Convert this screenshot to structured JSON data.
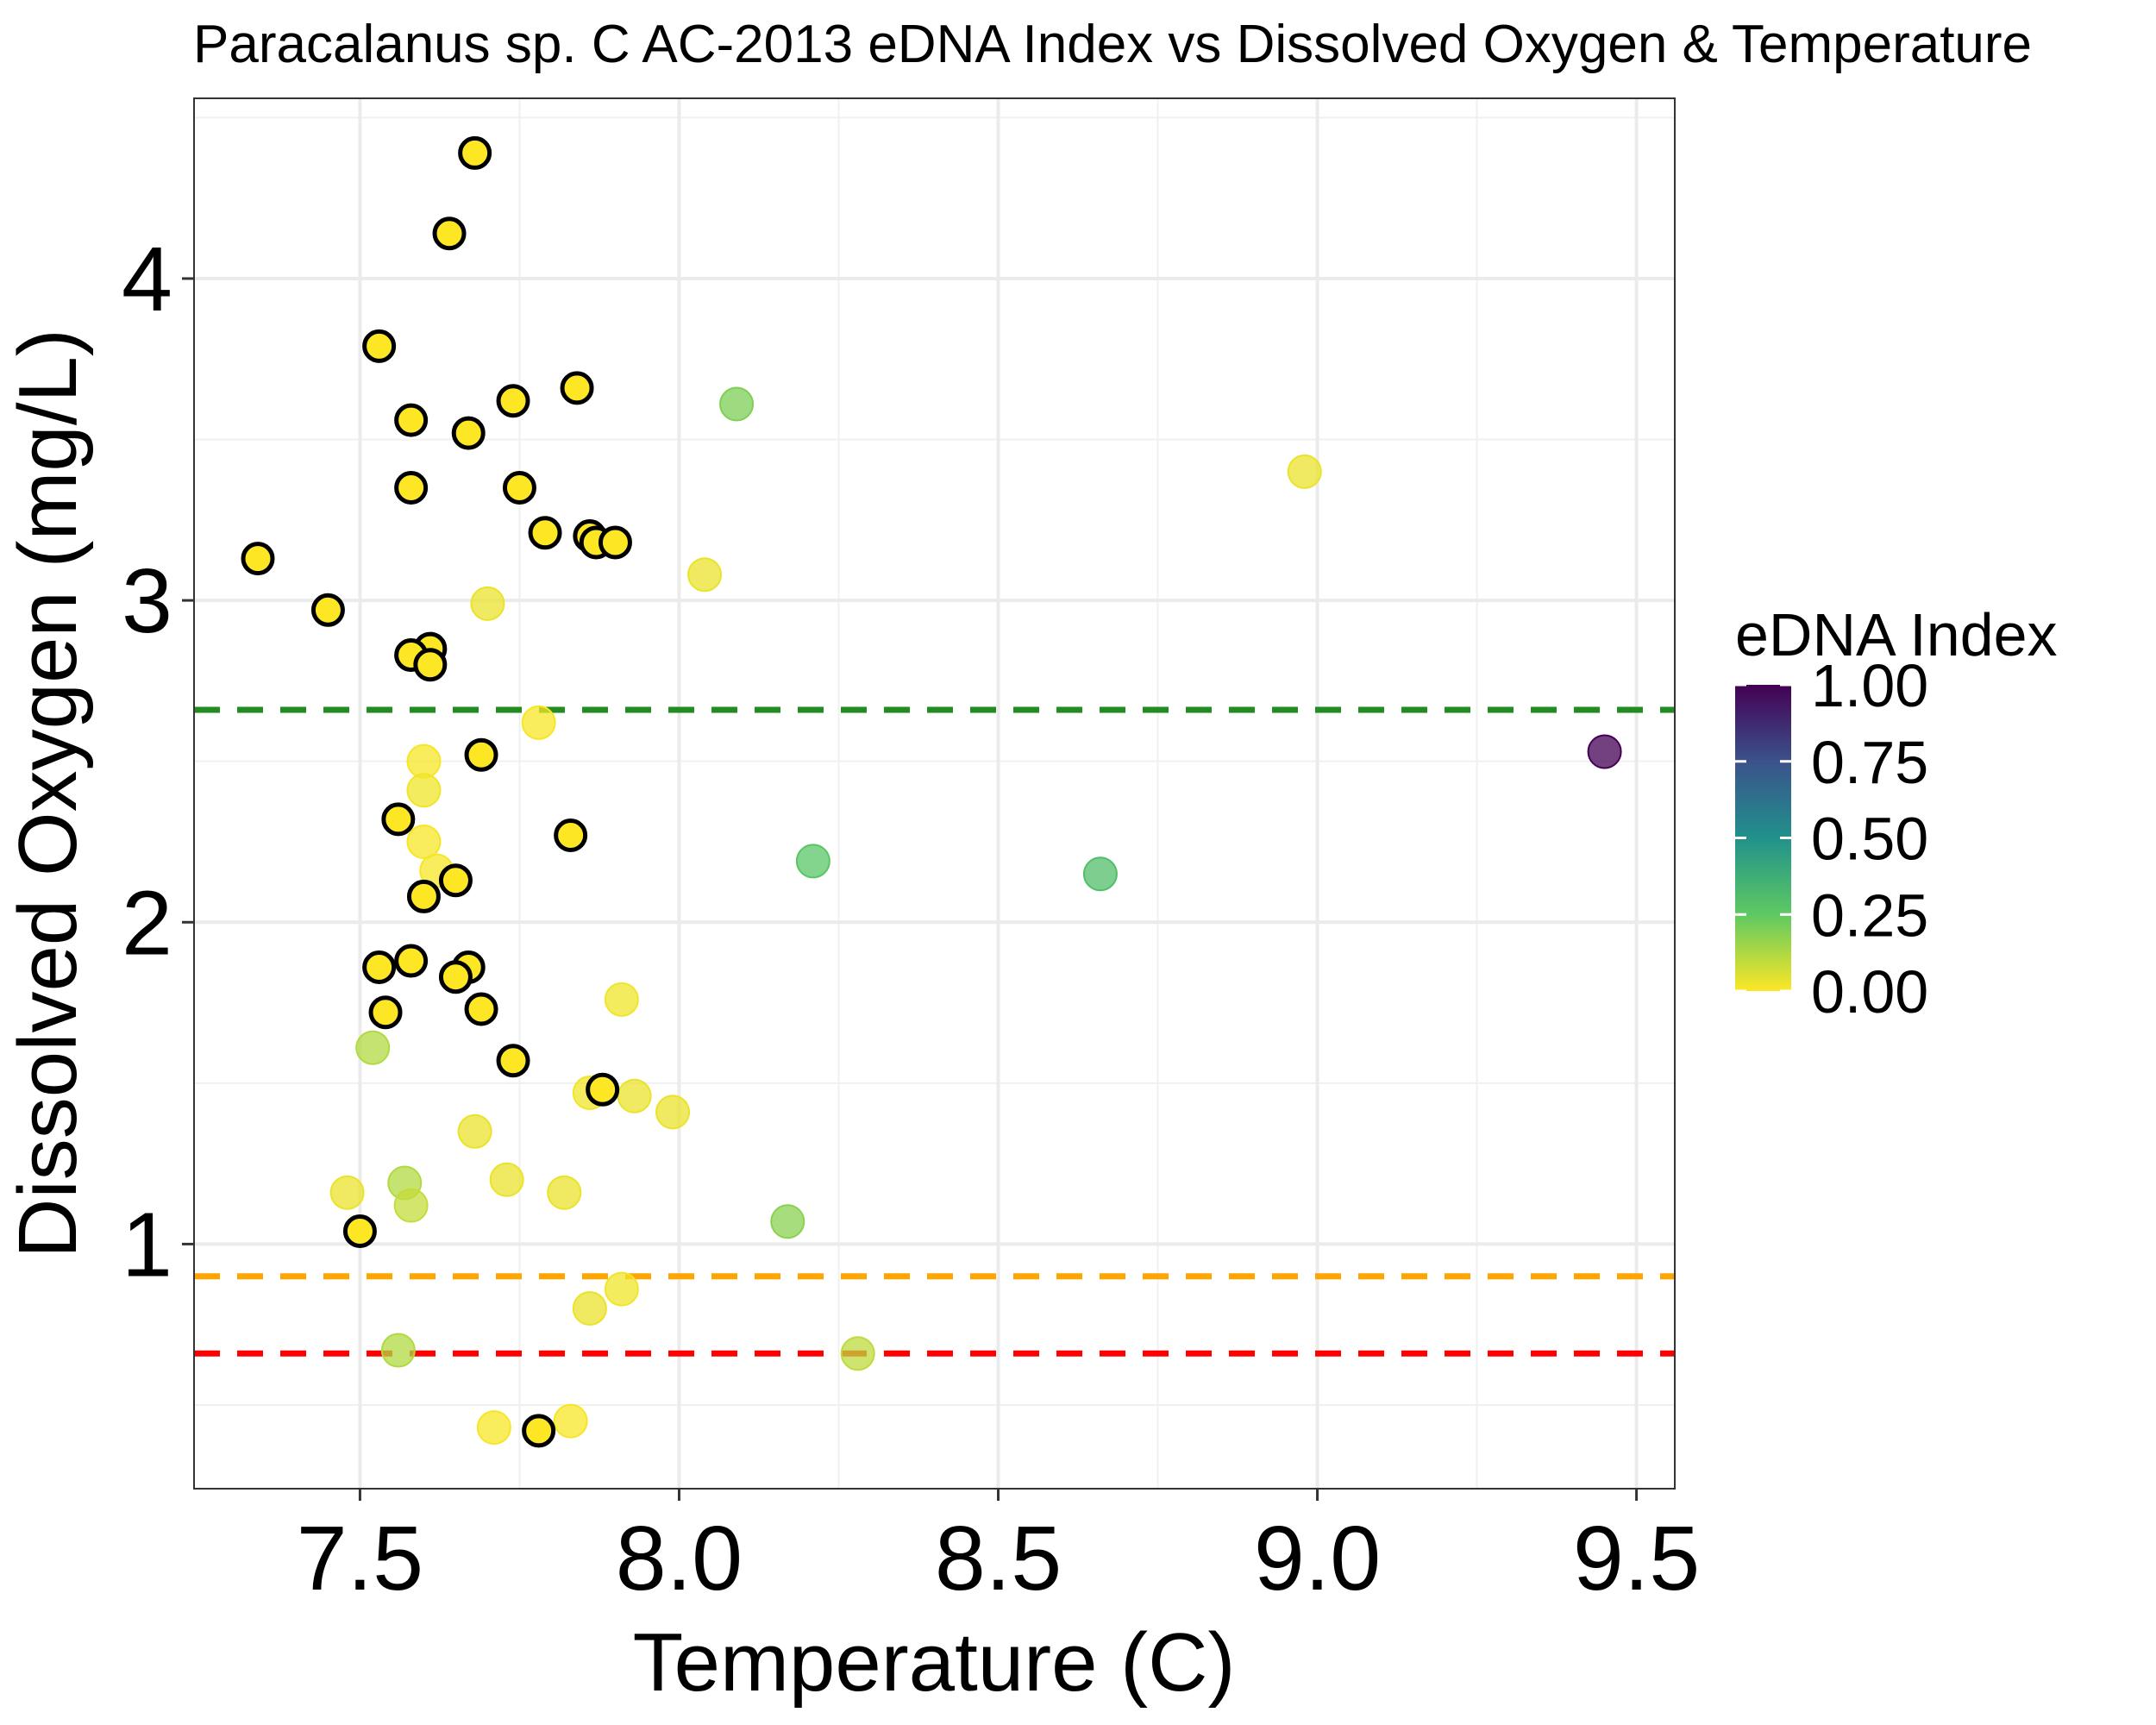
{
  "chart_data": {
    "type": "scatter",
    "title": "Paracalanus sp. C AC-2013 eDNA Index vs Dissolved Oxygen & Temperature",
    "xlabel": "Temperature (C)",
    "ylabel": "Dissolved Oxygen (mg/L)",
    "xlim": [
      7.24,
      9.56
    ],
    "ylim": [
      0.24,
      4.56
    ],
    "x_ticks": [
      7.5,
      8.0,
      8.5,
      9.0,
      9.5
    ],
    "x_tick_labels": [
      "7.5",
      "8.0",
      "8.5",
      "9.0",
      "9.5"
    ],
    "y_ticks": [
      1,
      2,
      3,
      4
    ],
    "y_tick_labels": [
      "1",
      "2",
      "3",
      "4"
    ],
    "grid": true,
    "reference_lines": [
      {
        "y": 2.66,
        "color": "#228B22",
        "style": "dashed"
      },
      {
        "y": 0.9,
        "color": "#FFA500",
        "style": "dashed"
      },
      {
        "y": 0.66,
        "color": "#FF0000",
        "style": "dashed"
      }
    ],
    "color_scale": {
      "title": "eDNA Index",
      "ticks": [
        1.0,
        0.75,
        0.5,
        0.25,
        0.0
      ],
      "tick_labels": [
        "1.00",
        "0.75",
        "0.50",
        "0.25",
        "0.00"
      ],
      "palette": "viridis",
      "legend_position": "right"
    },
    "points": [
      {
        "x": 7.68,
        "y": 4.39,
        "edna": 0.0,
        "outlined": true
      },
      {
        "x": 7.64,
        "y": 4.14,
        "edna": 0.0,
        "outlined": true
      },
      {
        "x": 7.53,
        "y": 3.79,
        "edna": 0.0,
        "outlined": true
      },
      {
        "x": 7.74,
        "y": 3.62,
        "edna": 0.0,
        "outlined": true
      },
      {
        "x": 7.84,
        "y": 3.66,
        "edna": 0.0,
        "outlined": true
      },
      {
        "x": 7.58,
        "y": 3.56,
        "edna": 0.0,
        "outlined": true
      },
      {
        "x": 7.67,
        "y": 3.52,
        "edna": 0.0,
        "outlined": true
      },
      {
        "x": 7.58,
        "y": 3.35,
        "edna": 0.0,
        "outlined": true
      },
      {
        "x": 7.75,
        "y": 3.35,
        "edna": 0.0,
        "outlined": true
      },
      {
        "x": 7.79,
        "y": 3.21,
        "edna": 0.0,
        "outlined": true
      },
      {
        "x": 7.86,
        "y": 3.2,
        "edna": 0.0,
        "outlined": true
      },
      {
        "x": 7.87,
        "y": 3.18,
        "edna": 0.0,
        "outlined": true
      },
      {
        "x": 7.9,
        "y": 3.18,
        "edna": 0.0,
        "outlined": true
      },
      {
        "x": 7.34,
        "y": 3.13,
        "edna": 0.0,
        "outlined": true
      },
      {
        "x": 7.45,
        "y": 2.97,
        "edna": 0.0,
        "outlined": true
      },
      {
        "x": 7.61,
        "y": 2.85,
        "edna": 0.0,
        "outlined": true
      },
      {
        "x": 7.58,
        "y": 2.83,
        "edna": 0.0,
        "outlined": true
      },
      {
        "x": 7.61,
        "y": 2.8,
        "edna": 0.0,
        "outlined": true
      },
      {
        "x": 7.69,
        "y": 2.52,
        "edna": 0.0,
        "outlined": true
      },
      {
        "x": 7.56,
        "y": 2.32,
        "edna": 0.0,
        "outlined": true
      },
      {
        "x": 7.83,
        "y": 2.27,
        "edna": 0.0,
        "outlined": true
      },
      {
        "x": 7.65,
        "y": 2.13,
        "edna": 0.0,
        "outlined": true
      },
      {
        "x": 7.6,
        "y": 2.08,
        "edna": 0.0,
        "outlined": true
      },
      {
        "x": 7.58,
        "y": 1.88,
        "edna": 0.0,
        "outlined": true
      },
      {
        "x": 7.53,
        "y": 1.86,
        "edna": 0.0,
        "outlined": true
      },
      {
        "x": 7.67,
        "y": 1.86,
        "edna": 0.0,
        "outlined": true
      },
      {
        "x": 7.65,
        "y": 1.83,
        "edna": 0.0,
        "outlined": true
      },
      {
        "x": 7.54,
        "y": 1.72,
        "edna": 0.0,
        "outlined": true
      },
      {
        "x": 7.69,
        "y": 1.73,
        "edna": 0.0,
        "outlined": true
      },
      {
        "x": 7.74,
        "y": 1.57,
        "edna": 0.0,
        "outlined": true
      },
      {
        "x": 7.88,
        "y": 1.48,
        "edna": 0.0,
        "outlined": true
      },
      {
        "x": 7.5,
        "y": 1.04,
        "edna": 0.0,
        "outlined": true
      },
      {
        "x": 7.78,
        "y": 0.42,
        "edna": 0.0,
        "outlined": true
      },
      {
        "x": 8.09,
        "y": 3.61,
        "edna": 0.2,
        "outlined": false
      },
      {
        "x": 8.98,
        "y": 3.4,
        "edna": 0.03,
        "outlined": false
      },
      {
        "x": 8.04,
        "y": 3.08,
        "edna": 0.03,
        "outlined": false
      },
      {
        "x": 7.7,
        "y": 2.99,
        "edna": 0.03,
        "outlined": false
      },
      {
        "x": 7.78,
        "y": 2.62,
        "edna": 0.01,
        "outlined": false
      },
      {
        "x": 9.45,
        "y": 2.53,
        "edna": 1.0,
        "outlined": false
      },
      {
        "x": 7.6,
        "y": 2.5,
        "edna": 0.01,
        "outlined": false
      },
      {
        "x": 7.6,
        "y": 2.41,
        "edna": 0.02,
        "outlined": false
      },
      {
        "x": 7.6,
        "y": 2.25,
        "edna": 0.01,
        "outlined": false
      },
      {
        "x": 7.62,
        "y": 2.16,
        "edna": 0.01,
        "outlined": false
      },
      {
        "x": 8.21,
        "y": 2.19,
        "edna": 0.27,
        "outlined": false
      },
      {
        "x": 8.66,
        "y": 2.15,
        "edna": 0.3,
        "outlined": false
      },
      {
        "x": 7.91,
        "y": 1.76,
        "edna": 0.02,
        "outlined": false
      },
      {
        "x": 7.52,
        "y": 1.61,
        "edna": 0.12,
        "outlined": false
      },
      {
        "x": 7.86,
        "y": 1.47,
        "edna": 0.02,
        "outlined": false
      },
      {
        "x": 7.93,
        "y": 1.46,
        "edna": 0.03,
        "outlined": false
      },
      {
        "x": 7.99,
        "y": 1.41,
        "edna": 0.03,
        "outlined": false
      },
      {
        "x": 7.68,
        "y": 1.35,
        "edna": 0.03,
        "outlined": false
      },
      {
        "x": 7.73,
        "y": 1.2,
        "edna": 0.03,
        "outlined": false
      },
      {
        "x": 7.57,
        "y": 1.19,
        "edna": 0.12,
        "outlined": false
      },
      {
        "x": 7.48,
        "y": 1.16,
        "edna": 0.03,
        "outlined": false
      },
      {
        "x": 7.82,
        "y": 1.16,
        "edna": 0.03,
        "outlined": false
      },
      {
        "x": 7.58,
        "y": 1.12,
        "edna": 0.09,
        "outlined": false
      },
      {
        "x": 8.17,
        "y": 1.07,
        "edna": 0.18,
        "outlined": false
      },
      {
        "x": 7.91,
        "y": 0.86,
        "edna": 0.02,
        "outlined": false
      },
      {
        "x": 7.86,
        "y": 0.8,
        "edna": 0.03,
        "outlined": false
      },
      {
        "x": 7.56,
        "y": 0.67,
        "edna": 0.12,
        "outlined": false
      },
      {
        "x": 8.28,
        "y": 0.66,
        "edna": 0.1,
        "outlined": false
      },
      {
        "x": 7.71,
        "y": 0.43,
        "edna": 0.01,
        "outlined": false
      },
      {
        "x": 7.83,
        "y": 0.45,
        "edna": 0.01,
        "outlined": false
      }
    ]
  }
}
